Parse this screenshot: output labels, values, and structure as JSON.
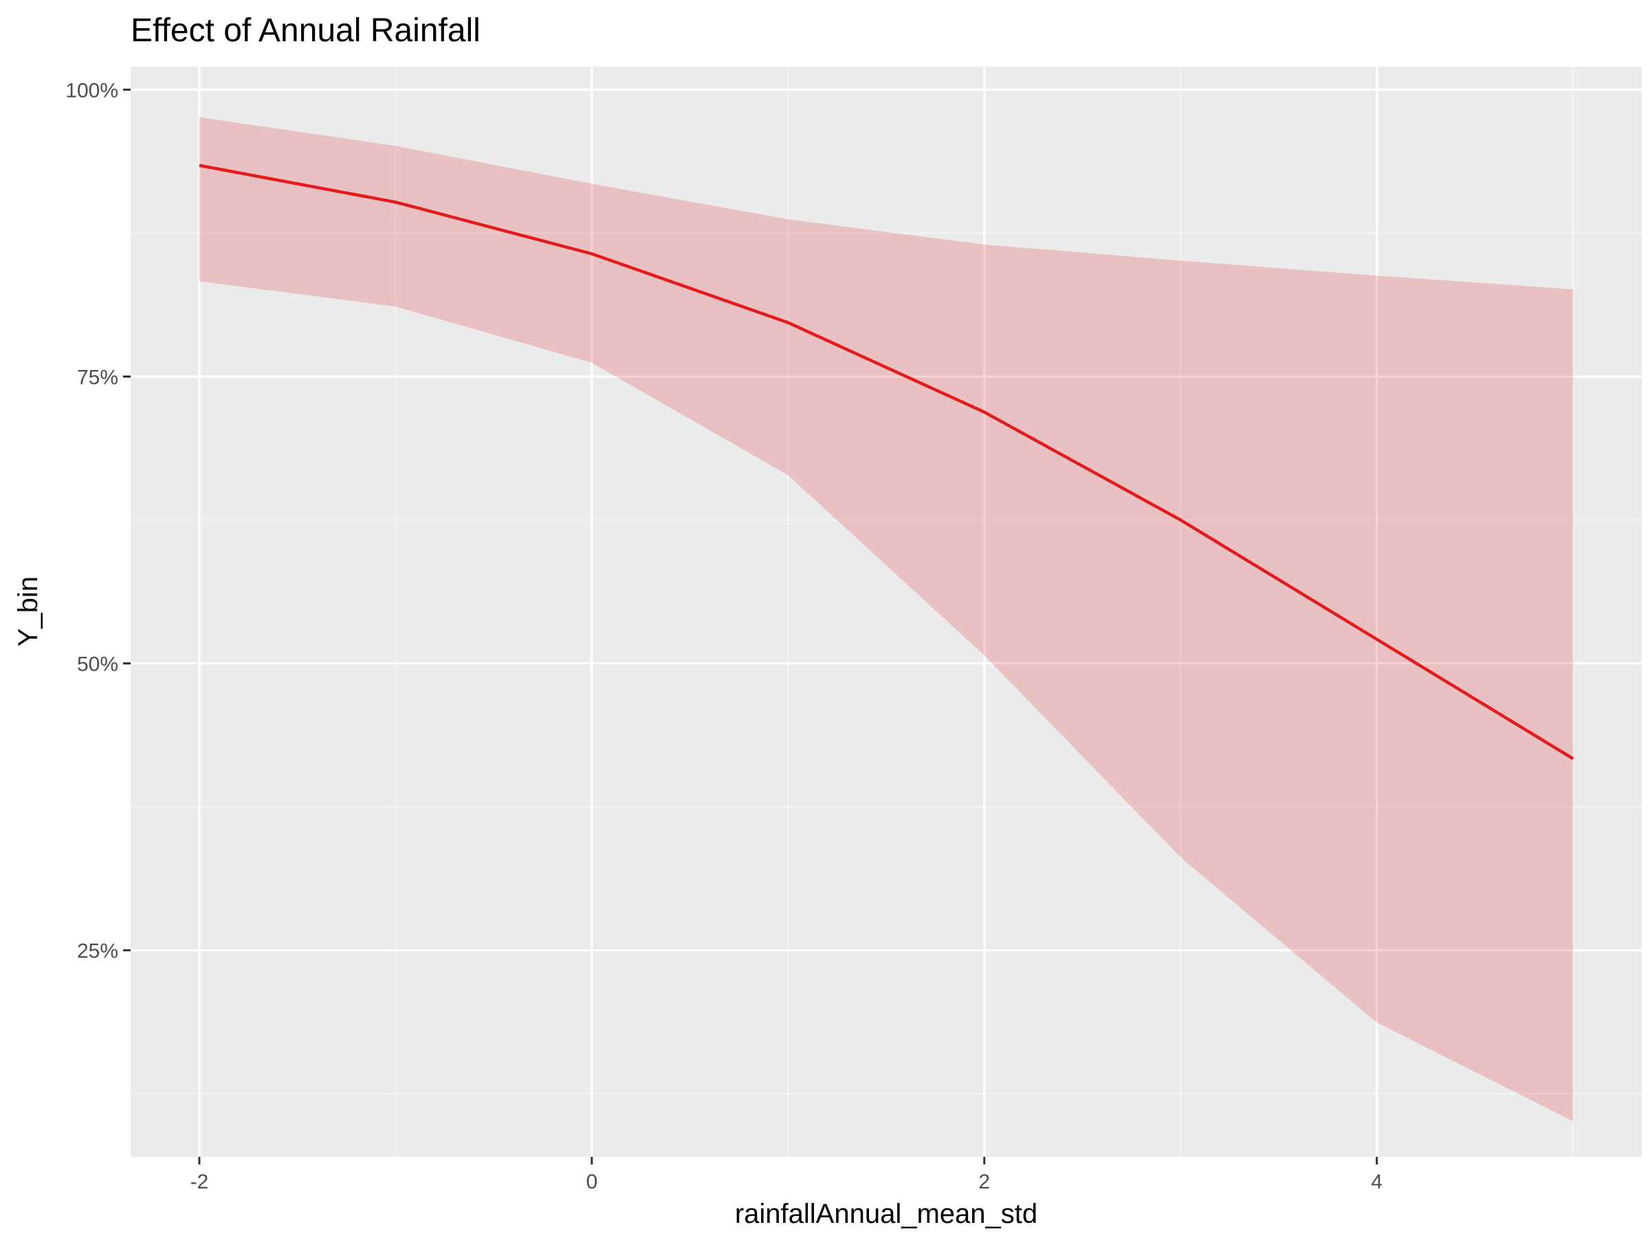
{
  "chart_data": {
    "type": "line",
    "title": "Effect of Annual Rainfall",
    "xlabel": "rainfallAnnual_mean_std",
    "ylabel": "Y_bin",
    "xlim": [
      -2.35,
      5.35
    ],
    "ylim": [
      0.07,
      1.02
    ],
    "x_ticks": [
      -2,
      0,
      2,
      4
    ],
    "x_tick_labels": [
      "-2",
      "0",
      "2",
      "4"
    ],
    "x_minor_ticks": [
      -1,
      1,
      3,
      5
    ],
    "y_ticks": [
      0.25,
      0.5,
      0.75,
      1.0
    ],
    "y_tick_labels": [
      "25%",
      "50%",
      "75%",
      "100%"
    ],
    "y_minor_ticks": [
      0.125,
      0.375,
      0.625,
      0.875
    ],
    "grid": true,
    "series": [
      {
        "x": [
          -2,
          -1,
          0,
          1,
          2,
          3,
          4,
          5
        ],
        "y": [
          0.934,
          0.902,
          0.857,
          0.797,
          0.719,
          0.625,
          0.521,
          0.417
        ],
        "ymin": [
          0.833,
          0.811,
          0.762,
          0.664,
          0.507,
          0.331,
          0.187,
          0.101
        ],
        "ymax": [
          0.976,
          0.951,
          0.918,
          0.887,
          0.865,
          0.851,
          0.838,
          0.826
        ],
        "color": "#e41a1c",
        "band_color": "#e41a1c",
        "band_opacity": 0.2
      }
    ],
    "colors": {
      "panel_background": "#ebebeb",
      "grid_major": "#ffffff",
      "grid_minor": "#f5f5f5",
      "tick": "#333333",
      "tick_label": "#4d4d4d",
      "text": "#000000"
    }
  }
}
